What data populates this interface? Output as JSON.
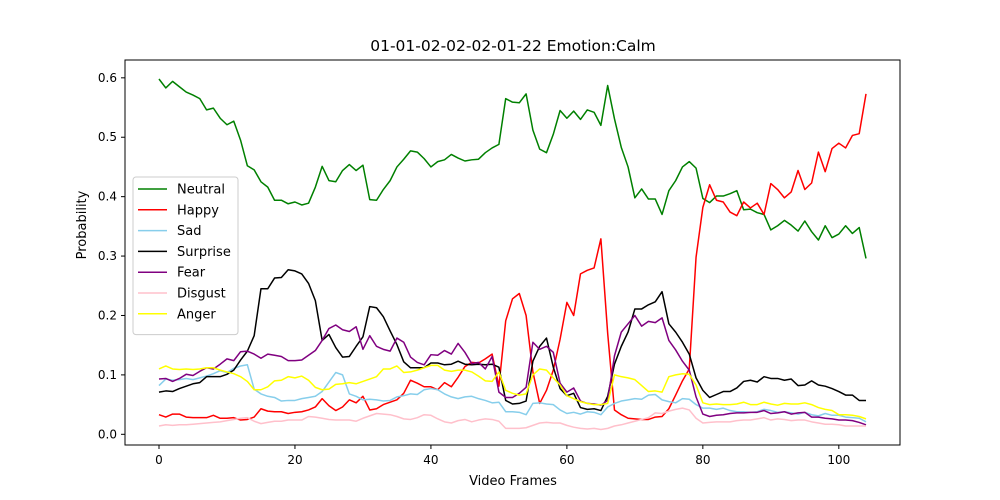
{
  "chart_data": {
    "type": "line",
    "title": "01-01-02-02-02-01-22 Emotion:Calm",
    "xlabel": "Video Frames",
    "ylabel": "Probability",
    "xlim": [
      -5,
      109
    ],
    "ylim": [
      -0.018,
      0.63
    ],
    "xticks": [
      0,
      20,
      40,
      60,
      80,
      100
    ],
    "yticks": [
      0.0,
      0.1,
      0.2,
      0.3,
      0.4,
      0.5,
      0.6
    ],
    "grid": false,
    "legend_position": "center-left",
    "series": [
      {
        "name": "Neutral",
        "color": "#008000",
        "values": [
          0.598,
          0.583,
          0.594,
          0.585,
          0.576,
          0.571,
          0.565,
          0.546,
          0.549,
          0.532,
          0.521,
          0.527,
          0.495,
          0.452,
          0.445,
          0.425,
          0.416,
          0.394,
          0.394,
          0.388,
          0.391,
          0.386,
          0.389,
          0.416,
          0.451,
          0.427,
          0.425,
          0.444,
          0.454,
          0.444,
          0.453,
          0.395,
          0.394,
          0.412,
          0.427,
          0.45,
          0.463,
          0.477,
          0.475,
          0.464,
          0.45,
          0.459,
          0.462,
          0.471,
          0.465,
          0.46,
          0.462,
          0.463,
          0.474,
          0.482,
          0.488,
          0.565,
          0.559,
          0.558,
          0.573,
          0.512,
          0.48,
          0.474,
          0.505,
          0.545,
          0.532,
          0.544,
          0.53,
          0.546,
          0.542,
          0.52,
          0.587,
          0.531,
          0.483,
          0.45,
          0.398,
          0.413,
          0.396,
          0.396,
          0.37,
          0.41,
          0.427,
          0.45,
          0.459,
          0.448,
          0.397,
          0.39,
          0.401,
          0.401,
          0.405,
          0.41,
          0.378,
          0.379,
          0.373,
          0.37,
          0.344,
          0.351,
          0.36,
          0.352,
          0.342,
          0.359,
          0.341,
          0.327,
          0.351,
          0.331,
          0.337,
          0.351,
          0.338,
          0.348,
          0.296
        ]
      },
      {
        "name": "Happy",
        "color": "#ff0000",
        "values": [
          0.033,
          0.029,
          0.034,
          0.034,
          0.029,
          0.028,
          0.028,
          0.028,
          0.032,
          0.027,
          0.027,
          0.028,
          0.024,
          0.025,
          0.029,
          0.043,
          0.039,
          0.038,
          0.038,
          0.035,
          0.037,
          0.038,
          0.041,
          0.046,
          0.06,
          0.048,
          0.04,
          0.046,
          0.058,
          0.053,
          0.064,
          0.041,
          0.043,
          0.05,
          0.054,
          0.058,
          0.069,
          0.091,
          0.086,
          0.08,
          0.08,
          0.075,
          0.087,
          0.08,
          0.096,
          0.114,
          0.121,
          0.12,
          0.127,
          0.135,
          0.081,
          0.191,
          0.228,
          0.237,
          0.2,
          0.105,
          0.052,
          0.074,
          0.108,
          0.16,
          0.222,
          0.2,
          0.27,
          0.276,
          0.28,
          0.329,
          0.17,
          0.041,
          0.033,
          0.027,
          0.026,
          0.025,
          0.025,
          0.029,
          0.03,
          0.043,
          0.066,
          0.09,
          0.11,
          0.298,
          0.382,
          0.42,
          0.394,
          0.391,
          0.374,
          0.368,
          0.391,
          0.381,
          0.389,
          0.37,
          0.422,
          0.412,
          0.398,
          0.408,
          0.444,
          0.412,
          0.423,
          0.475,
          0.442,
          0.481,
          0.49,
          0.482,
          0.503,
          0.506,
          0.573
        ]
      },
      {
        "name": "Sad",
        "color": "#87ceeb",
        "values": [
          0.082,
          0.093,
          0.091,
          0.092,
          0.094,
          0.092,
          0.095,
          0.098,
          0.102,
          0.107,
          0.104,
          0.111,
          0.115,
          0.117,
          0.076,
          0.068,
          0.064,
          0.062,
          0.056,
          0.057,
          0.057,
          0.06,
          0.062,
          0.064,
          0.072,
          0.088,
          0.104,
          0.1,
          0.068,
          0.064,
          0.058,
          0.059,
          0.058,
          0.056,
          0.057,
          0.063,
          0.065,
          0.068,
          0.067,
          0.075,
          0.077,
          0.075,
          0.068,
          0.063,
          0.06,
          0.063,
          0.064,
          0.06,
          0.057,
          0.053,
          0.054,
          0.038,
          0.038,
          0.037,
          0.033,
          0.052,
          0.053,
          0.051,
          0.05,
          0.041,
          0.035,
          0.037,
          0.034,
          0.038,
          0.037,
          0.033,
          0.046,
          0.052,
          0.056,
          0.058,
          0.06,
          0.059,
          0.066,
          0.067,
          0.058,
          0.055,
          0.053,
          0.06,
          0.059,
          0.05,
          0.044,
          0.044,
          0.042,
          0.044,
          0.04,
          0.038,
          0.038,
          0.037,
          0.038,
          0.042,
          0.04,
          0.037,
          0.038,
          0.036,
          0.034,
          0.037,
          0.033,
          0.031,
          0.035,
          0.032,
          0.032,
          0.029,
          0.028,
          0.027,
          0.021
        ]
      },
      {
        "name": "Surprise",
        "color": "#000000",
        "values": [
          0.071,
          0.073,
          0.072,
          0.077,
          0.081,
          0.085,
          0.087,
          0.097,
          0.097,
          0.097,
          0.101,
          0.108,
          0.125,
          0.14,
          0.166,
          0.245,
          0.245,
          0.263,
          0.264,
          0.277,
          0.275,
          0.27,
          0.254,
          0.225,
          0.158,
          0.168,
          0.146,
          0.13,
          0.131,
          0.148,
          0.164,
          0.215,
          0.213,
          0.198,
          0.174,
          0.151,
          0.122,
          0.112,
          0.112,
          0.112,
          0.12,
          0.12,
          0.117,
          0.118,
          0.123,
          0.118,
          0.117,
          0.118,
          0.117,
          0.118,
          0.113,
          0.057,
          0.051,
          0.052,
          0.056,
          0.123,
          0.148,
          0.162,
          0.113,
          0.077,
          0.065,
          0.069,
          0.045,
          0.042,
          0.043,
          0.04,
          0.064,
          0.118,
          0.148,
          0.172,
          0.211,
          0.211,
          0.218,
          0.223,
          0.24,
          0.186,
          0.172,
          0.155,
          0.135,
          0.095,
          0.074,
          0.062,
          0.067,
          0.072,
          0.072,
          0.078,
          0.089,
          0.091,
          0.088,
          0.097,
          0.094,
          0.094,
          0.091,
          0.093,
          0.082,
          0.083,
          0.09,
          0.083,
          0.081,
          0.077,
          0.072,
          0.066,
          0.066,
          0.057,
          0.057
        ]
      },
      {
        "name": "Fear",
        "color": "#800080",
        "values": [
          0.093,
          0.094,
          0.089,
          0.094,
          0.101,
          0.099,
          0.106,
          0.112,
          0.11,
          0.118,
          0.127,
          0.124,
          0.139,
          0.14,
          0.135,
          0.128,
          0.135,
          0.133,
          0.131,
          0.124,
          0.124,
          0.125,
          0.133,
          0.141,
          0.158,
          0.178,
          0.184,
          0.176,
          0.173,
          0.181,
          0.143,
          0.166,
          0.148,
          0.143,
          0.14,
          0.162,
          0.155,
          0.13,
          0.121,
          0.117,
          0.134,
          0.133,
          0.141,
          0.135,
          0.153,
          0.138,
          0.119,
          0.121,
          0.11,
          0.131,
          0.071,
          0.062,
          0.062,
          0.069,
          0.079,
          0.155,
          0.143,
          0.148,
          0.138,
          0.086,
          0.071,
          0.078,
          0.056,
          0.052,
          0.051,
          0.049,
          0.057,
          0.132,
          0.172,
          0.186,
          0.2,
          0.182,
          0.19,
          0.188,
          0.196,
          0.158,
          0.142,
          0.123,
          0.108,
          0.063,
          0.034,
          0.03,
          0.032,
          0.033,
          0.035,
          0.036,
          0.036,
          0.037,
          0.037,
          0.04,
          0.035,
          0.036,
          0.038,
          0.034,
          0.036,
          0.037,
          0.029,
          0.029,
          0.027,
          0.026,
          0.024,
          0.024,
          0.023,
          0.02,
          0.016
        ]
      },
      {
        "name": "Disgust",
        "color": "#ffc0cb",
        "values": [
          0.014,
          0.016,
          0.015,
          0.016,
          0.016,
          0.017,
          0.018,
          0.019,
          0.02,
          0.021,
          0.023,
          0.025,
          0.027,
          0.028,
          0.022,
          0.018,
          0.02,
          0.022,
          0.022,
          0.024,
          0.024,
          0.024,
          0.03,
          0.029,
          0.027,
          0.025,
          0.024,
          0.024,
          0.024,
          0.022,
          0.027,
          0.031,
          0.035,
          0.034,
          0.033,
          0.03,
          0.026,
          0.025,
          0.028,
          0.033,
          0.032,
          0.026,
          0.021,
          0.019,
          0.023,
          0.025,
          0.021,
          0.024,
          0.026,
          0.025,
          0.022,
          0.01,
          0.01,
          0.01,
          0.011,
          0.015,
          0.019,
          0.02,
          0.019,
          0.019,
          0.015,
          0.012,
          0.01,
          0.009,
          0.01,
          0.008,
          0.01,
          0.014,
          0.016,
          0.019,
          0.022,
          0.025,
          0.028,
          0.036,
          0.035,
          0.039,
          0.042,
          0.044,
          0.041,
          0.027,
          0.019,
          0.02,
          0.021,
          0.021,
          0.021,
          0.023,
          0.024,
          0.024,
          0.026,
          0.028,
          0.024,
          0.026,
          0.025,
          0.023,
          0.024,
          0.024,
          0.021,
          0.019,
          0.017,
          0.017,
          0.016,
          0.014,
          0.014,
          0.014,
          0.014
        ]
      },
      {
        "name": "Anger",
        "color": "#ffff00",
        "values": [
          0.11,
          0.115,
          0.11,
          0.109,
          0.11,
          0.109,
          0.11,
          0.112,
          0.112,
          0.108,
          0.105,
          0.102,
          0.097,
          0.089,
          0.075,
          0.075,
          0.08,
          0.09,
          0.091,
          0.097,
          0.095,
          0.098,
          0.091,
          0.079,
          0.075,
          0.076,
          0.084,
          0.085,
          0.087,
          0.085,
          0.089,
          0.093,
          0.097,
          0.11,
          0.11,
          0.115,
          0.104,
          0.105,
          0.108,
          0.112,
          0.116,
          0.116,
          0.108,
          0.106,
          0.108,
          0.108,
          0.105,
          0.098,
          0.09,
          0.089,
          0.105,
          0.074,
          0.069,
          0.066,
          0.068,
          0.1,
          0.11,
          0.108,
          0.095,
          0.083,
          0.065,
          0.06,
          0.055,
          0.052,
          0.05,
          0.05,
          0.052,
          0.1,
          0.097,
          0.095,
          0.092,
          0.082,
          0.072,
          0.073,
          0.071,
          0.097,
          0.1,
          0.102,
          0.101,
          0.083,
          0.053,
          0.05,
          0.051,
          0.05,
          0.05,
          0.051,
          0.054,
          0.05,
          0.05,
          0.054,
          0.051,
          0.049,
          0.052,
          0.051,
          0.051,
          0.053,
          0.05,
          0.045,
          0.042,
          0.04,
          0.033,
          0.033,
          0.032,
          0.03,
          0.026
        ]
      }
    ]
  }
}
